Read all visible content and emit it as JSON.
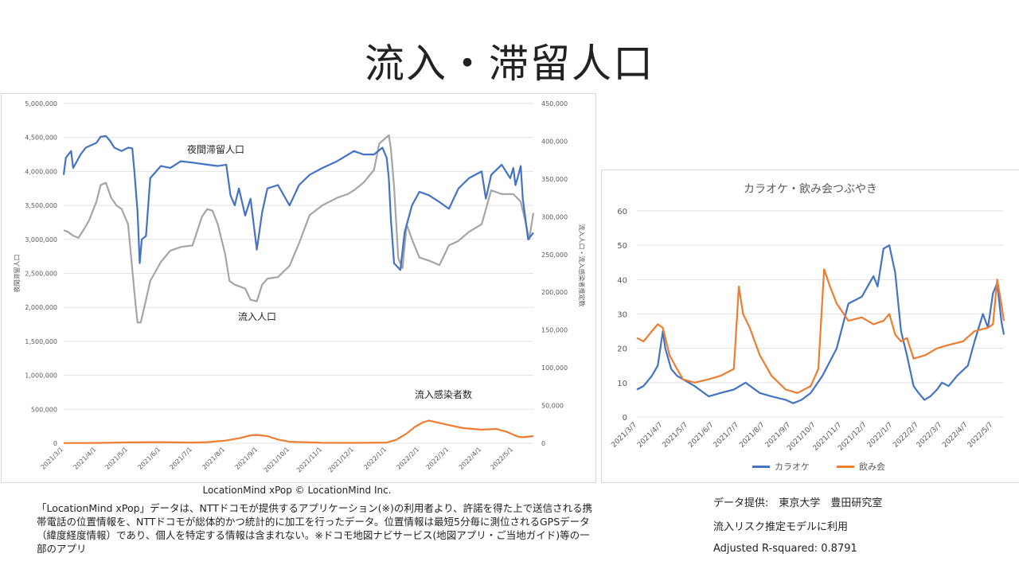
{
  "page": {
    "title": "流入・滞留人口",
    "credit": "LocationMind xPop © LocationMind Inc.",
    "description": "「LocationMind xPop」データは、NTTドコモが提供するアプリケーション(※)の利用者より、許諾を得た上で送信される携帯電話の位置情報を、NTTドコモが総体的かつ統計的に加工を行ったデータ。位置情報は最短5分毎に測位されるGPSデータ（緯度経度情報）であり、個人を特定する情報は含まれない。※ドコモ地図ナビサービス(地図アプリ・ご当地ガイド)等の一部のアプリ",
    "data_source": "データ提供:　東京大学　豊田研究室",
    "usage_note": "流入リスク推定モデルに利用",
    "r_squared": "Adjusted R-squared:  0.8791"
  },
  "chart_data": [
    {
      "type": "line",
      "title": "",
      "ylabel_left": "夜間滞留人口",
      "ylabel_right": "流入人口・流入感染者推定数",
      "left_ticks": [
        "0",
        "500,000",
        "1,000,000",
        "1,500,000",
        "2,000,000",
        "2,500,000",
        "3,000,000",
        "3,500,000",
        "4,000,000",
        "4,500,000",
        "5,000,000"
      ],
      "right_ticks": [
        "0",
        "50,000",
        "100,000",
        "150,000",
        "200,000",
        "250,000",
        "300,000",
        "350,000",
        "400,000",
        "450,000"
      ],
      "ylim_left": [
        0,
        5000000
      ],
      "ylim_right": [
        0,
        450000
      ],
      "x_tick_labels": [
        "2021/3/1",
        "2021/4/1",
        "2021/5/1",
        "2021/6/1",
        "2021/7/1",
        "2021/8/1",
        "2021/9/1",
        "2021/10/1",
        "2021/11/1",
        "2021/12/1",
        "2022/1/1",
        "2022/2/1",
        "2022/3/1",
        "2022/4/1",
        "2022/5/1"
      ],
      "x_range": [
        "2021/3/1",
        "2022/5/20"
      ],
      "annotations": [
        "夜間滞留人口",
        "流入人口",
        "流入感染者数"
      ],
      "series": [
        {
          "name": "夜間滞留人口",
          "axis": "left",
          "color": "#4472c4",
          "x": [
            "2021/3/1",
            "2021/3/3",
            "2021/3/8",
            "2021/3/10",
            "2021/3/17",
            "2021/3/22",
            "2021/4/1",
            "2021/4/5",
            "2021/4/10",
            "2021/4/14",
            "2021/4/18",
            "2021/4/25",
            "2021/5/1",
            "2021/5/5",
            "2021/5/7",
            "2021/5/10",
            "2021/5/12",
            "2021/5/14",
            "2021/5/18",
            "2021/5/22",
            "2021/6/1",
            "2021/6/10",
            "2021/6/20",
            "2021/7/1",
            "2021/7/15",
            "2021/7/25",
            "2021/8/2",
            "2021/8/6",
            "2021/8/10",
            "2021/8/14",
            "2021/8/20",
            "2021/8/25",
            "2021/8/31",
            "2021/9/5",
            "2021/9/10",
            "2021/9/20",
            "2021/10/1",
            "2021/10/10",
            "2021/10/20",
            "2021/11/1",
            "2021/11/15",
            "2021/12/1",
            "2021/12/10",
            "2021/12/20",
            "2021/12/28",
            "2022/1/1",
            "2022/1/3",
            "2022/1/5",
            "2022/1/8",
            "2022/1/11",
            "2022/1/14",
            "2022/1/18",
            "2022/1/25",
            "2022/2/1",
            "2022/2/10",
            "2022/2/20",
            "2022/3/1",
            "2022/3/10",
            "2022/3/20",
            "2022/4/1",
            "2022/4/5",
            "2022/4/10",
            "2022/4/20",
            "2022/4/28",
            "2022/5/1",
            "2022/5/3",
            "2022/5/5",
            "2022/5/8",
            "2022/5/10",
            "2022/5/15",
            "2022/5/20"
          ],
          "values": [
            3950000,
            4200000,
            4300000,
            4050000,
            4250000,
            4350000,
            4420000,
            4510000,
            4520000,
            4450000,
            4350000,
            4300000,
            4350000,
            4340000,
            4000000,
            3400000,
            2650000,
            3000000,
            3050000,
            3900000,
            4080000,
            4050000,
            4150000,
            4130000,
            4100000,
            4080000,
            4100000,
            3650000,
            3500000,
            3750000,
            3350000,
            3600000,
            2850000,
            3400000,
            3750000,
            3800000,
            3500000,
            3800000,
            3950000,
            4050000,
            4150000,
            4300000,
            4250000,
            4250000,
            4350000,
            4200000,
            3900000,
            3300000,
            2650000,
            2600000,
            2550000,
            3100000,
            3500000,
            3700000,
            3650000,
            3550000,
            3450000,
            3750000,
            3900000,
            4000000,
            3600000,
            3950000,
            4100000,
            3900000,
            4050000,
            3800000,
            3900000,
            4080000,
            3600000,
            3000000,
            3100000
          ]
        },
        {
          "name": "流入人口",
          "axis": "right",
          "color": "#a5a5a5",
          "x": [
            "2021/3/1",
            "2021/3/5",
            "2021/3/10",
            "2021/3/15",
            "2021/3/20",
            "2021/3/25",
            "2021/4/1",
            "2021/4/5",
            "2021/4/10",
            "2021/4/15",
            "2021/4/20",
            "2021/4/25",
            "2021/5/1",
            "2021/5/5",
            "2021/5/8",
            "2021/5/10",
            "2021/5/13",
            "2021/5/18",
            "2021/5/22",
            "2021/6/1",
            "2021/6/10",
            "2021/6/20",
            "2021/7/1",
            "2021/7/10",
            "2021/7/15",
            "2021/7/20",
            "2021/7/25",
            "2021/8/1",
            "2021/8/5",
            "2021/8/10",
            "2021/8/20",
            "2021/8/25",
            "2021/8/31",
            "2021/9/5",
            "2021/9/10",
            "2021/9/20",
            "2021/10/1",
            "2021/10/10",
            "2021/10/20",
            "2021/11/1",
            "2021/11/15",
            "2021/11/25",
            "2021/12/1",
            "2021/12/10",
            "2021/12/20",
            "2021/12/25",
            "2021/12/30",
            "2022/1/3",
            "2022/1/5",
            "2022/1/8",
            "2022/1/12",
            "2022/1/16",
            "2022/1/20",
            "2022/1/25",
            "2022/2/1",
            "2022/2/10",
            "2022/2/20",
            "2022/3/1",
            "2022/3/10",
            "2022/3/20",
            "2022/4/1",
            "2022/4/10",
            "2022/4/20",
            "2022/5/1",
            "2022/5/8",
            "2022/5/12",
            "2022/5/16",
            "2022/5/20"
          ],
          "values": [
            282000,
            280000,
            275000,
            272000,
            283000,
            295000,
            320000,
            342000,
            345000,
            325000,
            315000,
            310000,
            290000,
            230000,
            185000,
            160000,
            160000,
            190000,
            215000,
            240000,
            255000,
            260000,
            262000,
            300000,
            310000,
            308000,
            290000,
            250000,
            215000,
            210000,
            205000,
            190000,
            188000,
            210000,
            218000,
            220000,
            235000,
            265000,
            302000,
            315000,
            325000,
            330000,
            335000,
            345000,
            362000,
            397000,
            403000,
            408000,
            390000,
            340000,
            245000,
            232000,
            290000,
            270000,
            246000,
            242000,
            236000,
            262000,
            268000,
            280000,
            290000,
            335000,
            330000,
            330000,
            320000,
            296000,
            270000,
            305000
          ]
        },
        {
          "name": "流入感染者数",
          "axis": "right",
          "color": "#ed7d31",
          "x": [
            "2021/3/1",
            "2021/4/1",
            "2021/5/1",
            "2021/6/1",
            "2021/7/1",
            "2021/7/15",
            "2021/8/1",
            "2021/8/15",
            "2021/8/25",
            "2021/9/1",
            "2021/9/10",
            "2021/9/20",
            "2021/10/1",
            "2021/11/1",
            "2021/12/1",
            "2022/1/1",
            "2022/1/10",
            "2022/1/20",
            "2022/1/28",
            "2022/2/5",
            "2022/2/10",
            "2022/2/20",
            "2022/3/1",
            "2022/3/15",
            "2022/4/1",
            "2022/4/15",
            "2022/4/25",
            "2022/5/5",
            "2022/5/10",
            "2022/5/20"
          ],
          "values": [
            300,
            400,
            1200,
            1500,
            1000,
            1500,
            3500,
            7000,
            10500,
            11000,
            9500,
            5000,
            2000,
            600,
            500,
            1000,
            4500,
            13000,
            22000,
            28000,
            30000,
            27000,
            24000,
            20000,
            18000,
            19000,
            15000,
            9000,
            8000,
            9500
          ]
        }
      ]
    },
    {
      "type": "line",
      "title": "カラオケ・飲み会つぶやき",
      "xlabel": "",
      "ylabel": "",
      "ylim": [
        0,
        60
      ],
      "y_ticks": [
        "0",
        "10",
        "20",
        "30",
        "40",
        "50",
        "60"
      ],
      "x_tick_labels": [
        "2021/3/7",
        "2021/4/7",
        "2021/5/7",
        "2021/6/7",
        "2021/7/7",
        "2021/8/7",
        "2021/9/7",
        "2021/10/7",
        "2021/11/7",
        "2021/12/7",
        "2022/1/7",
        "2022/2/7",
        "2022/3/7",
        "2022/4/7",
        "2022/5/7"
      ],
      "x_range": [
        "2021/3/7",
        "2022/5/20"
      ],
      "legend_position": "bottom",
      "series": [
        {
          "name": "カラオケ",
          "color": "#4472c4",
          "x": [
            "2021/3/7",
            "2021/3/15",
            "2021/3/25",
            "2021/4/1",
            "2021/4/7",
            "2021/4/10",
            "2021/4/17",
            "2021/4/24",
            "2021/5/1",
            "2021/5/15",
            "2021/6/1",
            "2021/6/15",
            "2021/7/1",
            "2021/7/15",
            "2021/8/1",
            "2021/8/15",
            "2021/9/1",
            "2021/9/10",
            "2021/9/20",
            "2021/10/1",
            "2021/10/15",
            "2021/11/1",
            "2021/11/15",
            "2021/12/1",
            "2021/12/15",
            "2021/12/20",
            "2021/12/27",
            "2022/1/3",
            "2022/1/10",
            "2022/1/17",
            "2022/1/24",
            "2022/2/1",
            "2022/2/7",
            "2022/2/14",
            "2022/2/21",
            "2022/3/1",
            "2022/3/7",
            "2022/3/15",
            "2022/3/25",
            "2022/4/7",
            "2022/4/15",
            "2022/4/25",
            "2022/5/1",
            "2022/5/7",
            "2022/5/12",
            "2022/5/17",
            "2022/5/20"
          ],
          "values": [
            8,
            9,
            12,
            15,
            25,
            20,
            14,
            12,
            11,
            9,
            6,
            7,
            8,
            10,
            7,
            6,
            5,
            4,
            5,
            7,
            12,
            20,
            33,
            35,
            41,
            38,
            49,
            50,
            42,
            25,
            18,
            9,
            7,
            5,
            6,
            8,
            10,
            9,
            12,
            15,
            22,
            30,
            26,
            36,
            39,
            28,
            24
          ]
        },
        {
          "name": "飲み会",
          "color": "#ed7d31",
          "x": [
            "2021/3/7",
            "2021/3/15",
            "2021/3/25",
            "2021/4/1",
            "2021/4/7",
            "2021/4/15",
            "2021/4/24",
            "2021/5/1",
            "2021/5/15",
            "2021/6/1",
            "2021/6/15",
            "2021/7/1",
            "2021/7/7",
            "2021/7/12",
            "2021/7/20",
            "2021/8/1",
            "2021/8/15",
            "2021/9/1",
            "2021/9/15",
            "2021/10/1",
            "2021/10/10",
            "2021/10/17",
            "2021/10/24",
            "2021/11/1",
            "2021/11/15",
            "2021/12/1",
            "2021/12/15",
            "2021/12/27",
            "2022/1/3",
            "2022/1/10",
            "2022/1/17",
            "2022/1/24",
            "2022/2/1",
            "2022/2/15",
            "2022/3/1",
            "2022/3/15",
            "2022/4/1",
            "2022/4/15",
            "2022/5/1",
            "2022/5/7",
            "2022/5/12",
            "2022/5/17",
            "2022/5/20"
          ],
          "values": [
            23,
            22,
            25,
            27,
            26,
            18,
            14,
            11,
            10,
            11,
            12,
            14,
            38,
            30,
            26,
            18,
            12,
            8,
            7,
            9,
            14,
            43,
            38,
            33,
            28,
            29,
            27,
            28,
            30,
            24,
            22,
            23,
            17,
            18,
            20,
            21,
            22,
            25,
            26,
            27,
            40,
            33,
            28
          ]
        }
      ]
    }
  ]
}
